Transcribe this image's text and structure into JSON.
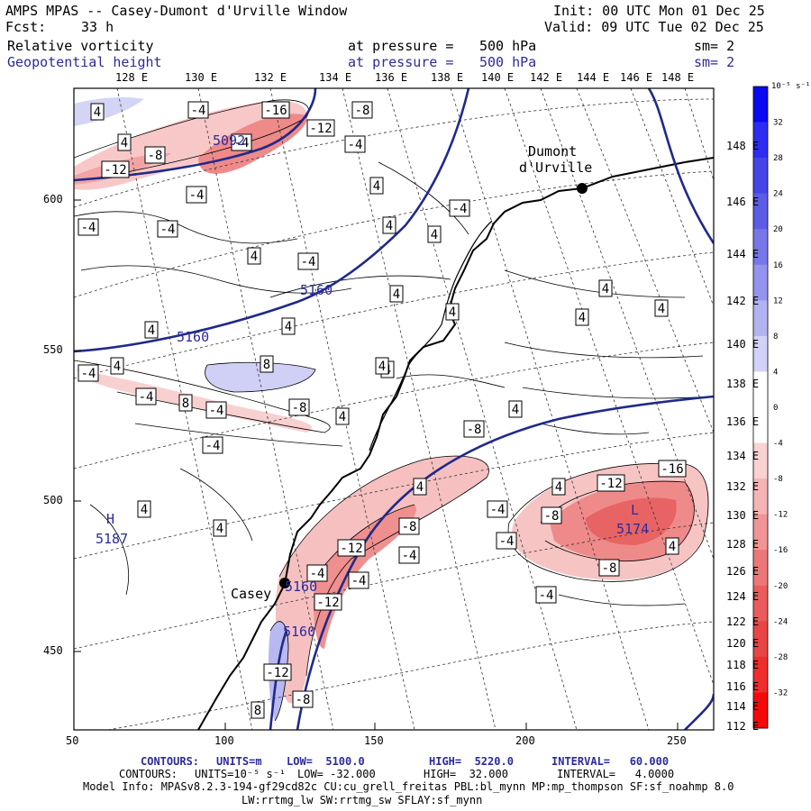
{
  "header": {
    "title": "AMPS MPAS -- Casey-Dumont d'Urville Window",
    "init": "Init: 00 UTC Mon 01 Dec 25",
    "fcst_label": "Fcst:",
    "fcst_value": "33 h",
    "valid": "Valid: 09 UTC Tue 02 Dec 25",
    "field1": {
      "name": "Relative vorticity",
      "pressure_label": "at pressure =",
      "pressure_value": "500 hPa",
      "sm": "sm= 2"
    },
    "field2": {
      "name": "Geopotential height",
      "pressure_label": "at pressure =",
      "pressure_value": "500 hPa",
      "sm": "sm= 2"
    }
  },
  "axes": {
    "top_lon_labels": [
      "128 E",
      "130 E",
      "132 E",
      "134 E",
      "136 E",
      "138 E",
      "140 E",
      "142 E",
      "144 E",
      "146 E",
      "148 E"
    ],
    "right_lon_labels": [
      "148 E",
      "146 E",
      "144 E",
      "142 E",
      "140 E",
      "138 E",
      "136 E",
      "134 E",
      "132 E",
      "130 E",
      "128 E",
      "126 E",
      "124 E",
      "122 E",
      "120 E",
      "118 E",
      "116 E",
      "114 E",
      "112 E"
    ],
    "x_ticks": [
      "50",
      "100",
      "150",
      "200",
      "250"
    ],
    "y_ticks": [
      "600",
      "550",
      "500",
      "450"
    ]
  },
  "places": [
    {
      "name": "Dumont",
      "name2": "d'Urville"
    },
    {
      "name": "Casey"
    }
  ],
  "height_labels": [
    "5160",
    "5160",
    "5160",
    "5160",
    "5174",
    "5187",
    "5092"
  ],
  "markers": {
    "high": "H",
    "low": "L"
  },
  "colorbar": {
    "unit": "10⁻⁵ s⁻¹",
    "labels": [
      "32",
      "28",
      "24",
      "20",
      "16",
      "12",
      "8",
      "4",
      "0",
      "-4",
      "-8",
      "-12",
      "-16",
      "-20",
      "-24",
      "-28",
      "-32"
    ],
    "colors": [
      "#0a0af0",
      "#2d2df2",
      "#4545e8",
      "#5c5ce6",
      "#7777ea",
      "#9494ee",
      "#b3b3f2",
      "#d2d2f8",
      "#ffffff",
      "#ffffff",
      "#fad2d2",
      "#f6b4b4",
      "#f19494",
      "#ec7777",
      "#ea5c5c",
      "#e84545",
      "#f02d2d",
      "#f50a0a"
    ]
  },
  "footer": {
    "line1": {
      "contours": "CONTOURS:",
      "units": "UNITS=m",
      "low": "LOW=  5100.0",
      "high": "HIGH=  5220.0",
      "interval": "INTERVAL=   60.000"
    },
    "line2": {
      "contours": "CONTOURS:",
      "units": "UNITS=10⁻⁵ s⁻¹",
      "low": "LOW= -32.000",
      "high": "HIGH=  32.000",
      "interval": "INTERVAL=   4.0000"
    },
    "model_info": "Model Info: MPASv8.2.3-194-gf29cd82c CU:cu_grell_freitas PBL:bl_mynn MP:mp_thompson SF:sf_noahmp 8.0",
    "model_info2": "LW:rrtmg_lw SW:rrtmg_sw SFLAY:sf_mynn"
  },
  "contour_labels": [
    "4",
    "-4",
    "-16",
    "-8",
    "-12",
    "-4",
    "4",
    "-8",
    "-12",
    "-4",
    "-4",
    "4",
    "-4",
    "-4",
    "4",
    "-4",
    "4",
    "4",
    "-4",
    "4",
    "4",
    "4",
    "4",
    "4",
    "4",
    "4",
    "4",
    "-4",
    "4",
    "8",
    "-4",
    "8",
    "-4",
    "-8",
    "4",
    "4",
    "-4",
    "-8",
    "4",
    "4",
    "4",
    "-4",
    "4",
    "-8",
    "-12",
    "-16",
    "-12",
    "-8",
    "-4",
    "-8",
    "-4",
    "-12",
    "4",
    "-4",
    "-12",
    "8",
    "-8",
    "4",
    "-4",
    "-4",
    "-8",
    "4"
  ]
}
